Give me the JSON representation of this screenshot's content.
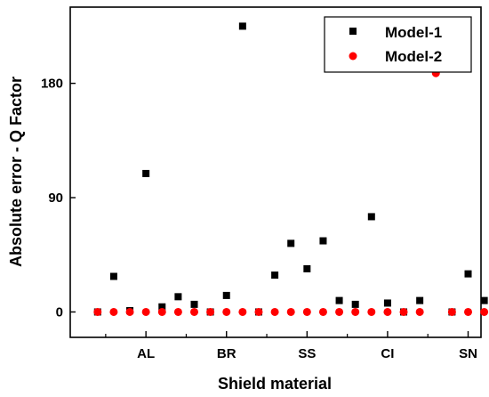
{
  "chart_data": {
    "type": "scatter",
    "xlabel": "Shield material",
    "ylabel": "Absolute error - Q Factor",
    "ylim": [
      -20,
      240
    ],
    "xlim": [
      -0.7,
      24.8
    ],
    "yticks": [
      0,
      90,
      180
    ],
    "xticks": [
      {
        "label": "AL",
        "x": 4
      },
      {
        "label": "BR",
        "x": 9
      },
      {
        "label": "SS",
        "x": 14
      },
      {
        "label": "CI",
        "x": 19
      },
      {
        "label": "SN",
        "x": 24
      }
    ],
    "x_minor_ticks": [
      1.5,
      6.5,
      11.5,
      16.5,
      21.5
    ],
    "legend_position": "top-right",
    "grid": false,
    "series": [
      {
        "name": "Model-1",
        "marker": "square",
        "color": "#000000",
        "x": [
          1,
          2,
          3,
          4,
          5,
          6,
          7,
          8,
          9,
          10,
          11,
          12,
          13,
          14,
          15,
          16,
          17,
          18,
          19,
          20,
          21,
          22,
          23,
          24,
          25
        ],
        "y": [
          0,
          28,
          1,
          109,
          4,
          12,
          6,
          0,
          13,
          225,
          0,
          29,
          54,
          34,
          56,
          9,
          6,
          75,
          7,
          0,
          9,
          190,
          0,
          30,
          9
        ]
      },
      {
        "name": "Model-2",
        "marker": "circle",
        "color": "#ff0000",
        "x": [
          1,
          2,
          3,
          4,
          5,
          6,
          7,
          8,
          9,
          10,
          11,
          12,
          13,
          14,
          15,
          16,
          17,
          18,
          19,
          20,
          21,
          22,
          23,
          24,
          25
        ],
        "y": [
          0,
          0,
          0,
          0,
          0,
          0,
          0,
          0,
          0,
          0,
          0,
          0,
          0,
          0,
          0,
          0,
          0,
          0,
          0,
          0,
          0,
          188,
          0,
          0,
          0
        ]
      }
    ]
  }
}
